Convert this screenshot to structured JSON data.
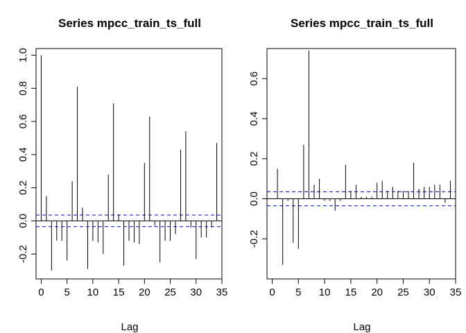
{
  "chart_data": [
    {
      "type": "bar",
      "title": "Series  mpcc_train_ts_full",
      "xlabel": "Lag",
      "ylabel": "",
      "xlim": [
        -1,
        35
      ],
      "ylim": [
        -0.35,
        1.04
      ],
      "x_ticks": [
        0,
        5,
        10,
        15,
        20,
        25,
        30,
        35
      ],
      "y_ticks": [
        -0.2,
        0.0,
        0.2,
        0.4,
        0.6,
        0.8,
        1.0
      ],
      "y_tick_labels": [
        "-0.2",
        "0.0",
        "0.2",
        "0.4",
        "0.6",
        "0.8",
        "1.0"
      ],
      "x": [
        0,
        1,
        2,
        3,
        4,
        5,
        6,
        7,
        8,
        9,
        10,
        11,
        12,
        13,
        14,
        15,
        16,
        17,
        18,
        19,
        20,
        21,
        22,
        23,
        24,
        25,
        26,
        27,
        28,
        29,
        30,
        31,
        32,
        33,
        34
      ],
      "values": [
        1.0,
        0.15,
        -0.3,
        -0.12,
        -0.12,
        -0.24,
        0.24,
        0.81,
        0.08,
        -0.29,
        -0.12,
        -0.13,
        -0.2,
        0.28,
        0.71,
        0.04,
        -0.27,
        -0.12,
        -0.13,
        -0.14,
        0.35,
        0.63,
        -0.03,
        -0.25,
        -0.12,
        -0.12,
        -0.08,
        0.43,
        0.54,
        -0.04,
        -0.23,
        -0.1,
        -0.1,
        -0.04,
        0.47
      ],
      "confidence_bound": 0.035,
      "colors": {
        "bars": "#000000",
        "bounds": "#0000cc",
        "zero": "#000000"
      }
    },
    {
      "type": "bar",
      "title": "Series  mpcc_train_ts_full",
      "xlabel": "Lag",
      "ylabel": "",
      "xlim": [
        -1,
        35
      ],
      "ylim": [
        -0.4,
        0.75
      ],
      "x_ticks": [
        0,
        5,
        10,
        15,
        20,
        25,
        30,
        35
      ],
      "y_ticks": [
        -0.2,
        0.0,
        0.2,
        0.4,
        0.6
      ],
      "y_tick_labels": [
        "-0.2",
        "0.0",
        "0.2",
        "0.4",
        "0.6"
      ],
      "x": [
        1,
        2,
        3,
        4,
        5,
        6,
        7,
        8,
        9,
        10,
        11,
        12,
        13,
        14,
        15,
        16,
        17,
        18,
        19,
        20,
        21,
        22,
        23,
        24,
        25,
        26,
        27,
        28,
        29,
        30,
        31,
        32,
        33,
        34
      ],
      "values": [
        0.15,
        -0.33,
        -0.01,
        -0.22,
        -0.25,
        0.27,
        0.74,
        0.07,
        0.1,
        -0.01,
        -0.01,
        -0.06,
        -0.01,
        0.17,
        0.04,
        0.07,
        0.01,
        0.01,
        0.01,
        0.08,
        0.09,
        0.04,
        0.06,
        0.04,
        0.04,
        0.04,
        0.18,
        0.05,
        0.06,
        0.06,
        0.07,
        0.07,
        -0.02,
        0.09
      ],
      "confidence_bound": 0.035,
      "colors": {
        "bars": "#000000",
        "bounds": "#0000cc",
        "zero": "#000000"
      }
    }
  ]
}
